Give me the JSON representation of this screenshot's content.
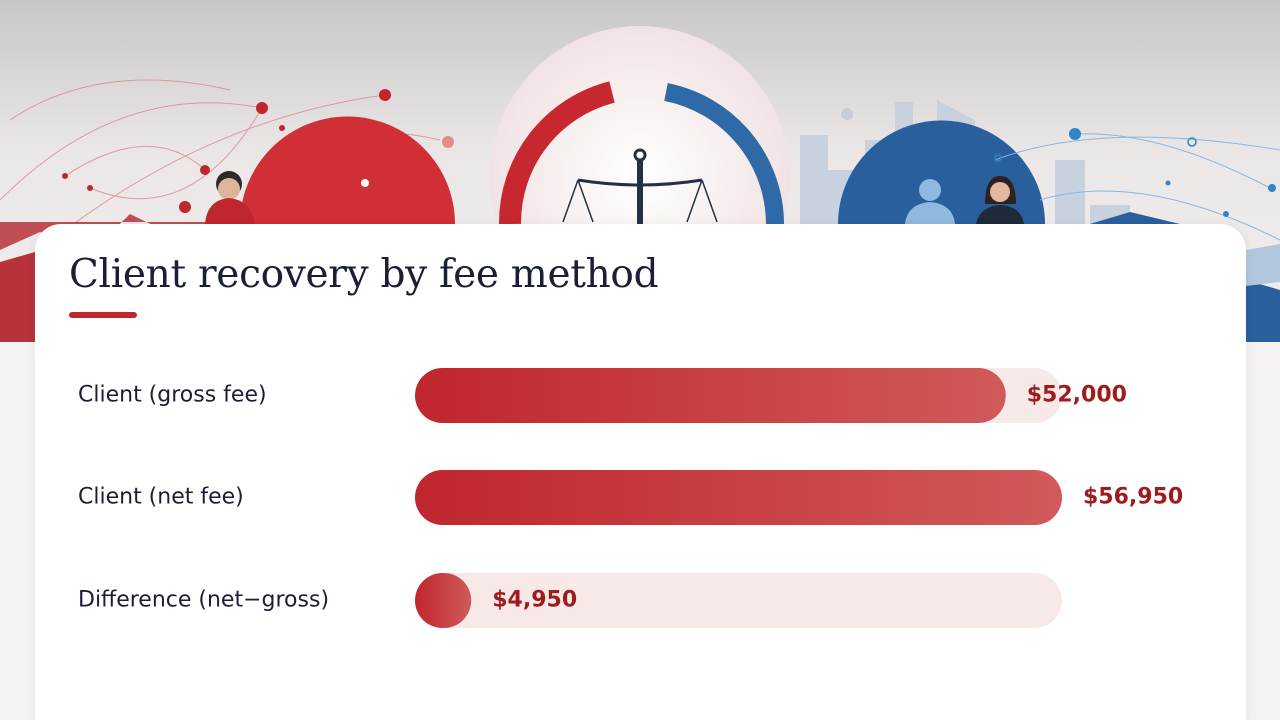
{
  "colors": {
    "bar_start": "#c0262d",
    "bar_end": "#d05a5b",
    "track": "#f8e9e9",
    "value_text": "#9f1b1e",
    "label_text": "#1a1f36",
    "accent": "#c0262d",
    "brand_blue": "#2f6aa8"
  },
  "decoration": {
    "hero_icons": [
      "network-nodes",
      "person-icon",
      "scales-of-justice-icon",
      "city-skyline",
      "person-icon"
    ]
  },
  "chart_data": {
    "type": "bar",
    "orientation": "horizontal",
    "title": "Client recovery by fee method",
    "categories": [
      "Client (gross fee)",
      "Client (net fee)",
      "Difference (net−gross)"
    ],
    "values": [
      52000,
      56950,
      4950
    ],
    "value_labels": [
      "$52,000",
      "$56,950",
      "$4,950"
    ],
    "xlim": [
      0,
      56950
    ],
    "grid": false,
    "legend": "none"
  }
}
